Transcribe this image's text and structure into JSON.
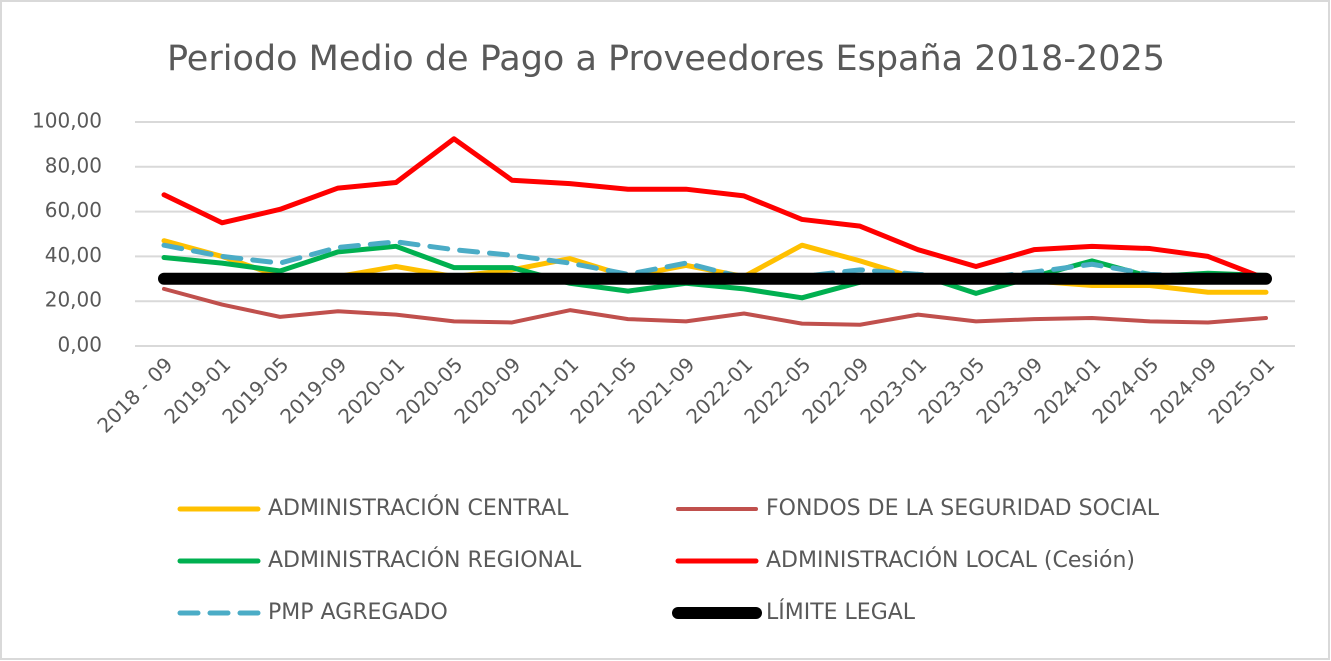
{
  "chart_data": {
    "type": "line",
    "title": "Periodo Medio de Pago a Proveedores España 2018-2025",
    "categories": [
      "2018 - 09",
      "2019-01",
      "2019-05",
      "2019-09",
      "2020-01",
      "2020-05",
      "2020-09",
      "2021-01",
      "2021-05",
      "2021-09",
      "2022-01",
      "2022-05",
      "2022-09",
      "2023-01",
      "2023-05",
      "2023-09",
      "2024-01",
      "2024-05",
      "2024-09",
      "2025-01"
    ],
    "series": [
      {
        "name": "ADMINISTRACIÓN CENTRAL",
        "color": "#ffc000",
        "width": 5,
        "values": [
          47,
          40,
          31,
          31,
          35.5,
          31,
          34,
          39,
          31,
          36,
          31,
          45,
          38,
          30,
          30,
          29,
          27,
          27,
          24,
          24
        ]
      },
      {
        "name": "FONDOS DE LA SEGURIDAD SOCIAL",
        "color": "#c0504d",
        "width": 4,
        "values": [
          25.5,
          18.5,
          13,
          15.5,
          14,
          11,
          10.5,
          16,
          12,
          11,
          14.5,
          10,
          9.5,
          14,
          11,
          12,
          12.5,
          11,
          10.5,
          12.5
        ]
      },
      {
        "name": "ADMINISTRACIÓN REGIONAL",
        "color": "#00b050",
        "width": 5,
        "values": [
          39.5,
          37,
          33.5,
          42,
          44.5,
          35,
          35,
          28,
          24.5,
          28,
          25.5,
          21.5,
          28.5,
          32,
          23.5,
          31,
          38,
          31,
          32.5,
          31.5
        ]
      },
      {
        "name": "ADMINISTRACIÓN LOCAL (Cesión)",
        "color": "#ff0000",
        "width": 5,
        "values": [
          67.5,
          55,
          61,
          70.5,
          73,
          92.5,
          74,
          72.5,
          70,
          70,
          67,
          56.5,
          53.5,
          43,
          35.5,
          43,
          44.5,
          43.5,
          40,
          30
        ]
      },
      {
        "name": "PMP AGREGADO",
        "color": "#4bacc6",
        "width": 5,
        "dashed": true,
        "values": [
          45,
          40,
          37,
          44,
          46.5,
          43,
          40.5,
          37,
          32,
          37,
          30.5,
          31,
          34,
          32,
          30,
          33,
          36.5,
          32,
          31,
          30
        ]
      },
      {
        "name": "LÍMITE LEGAL",
        "color": "#000000",
        "width": 12,
        "values": [
          30,
          30,
          30,
          30,
          30,
          30,
          30,
          30,
          30,
          30,
          30,
          30,
          30,
          30,
          30,
          30,
          30,
          30,
          30,
          30
        ]
      }
    ],
    "ylim": [
      0,
      100
    ],
    "yticks": [
      {
        "value": 0,
        "label": "0,00"
      },
      {
        "value": 20,
        "label": "20,00"
      },
      {
        "value": 40,
        "label": "40,00"
      },
      {
        "value": 60,
        "label": "60,00"
      },
      {
        "value": 80,
        "label": "80,00"
      },
      {
        "value": 100,
        "label": "100,00"
      }
    ],
    "grid": true,
    "legend": "bottom"
  }
}
